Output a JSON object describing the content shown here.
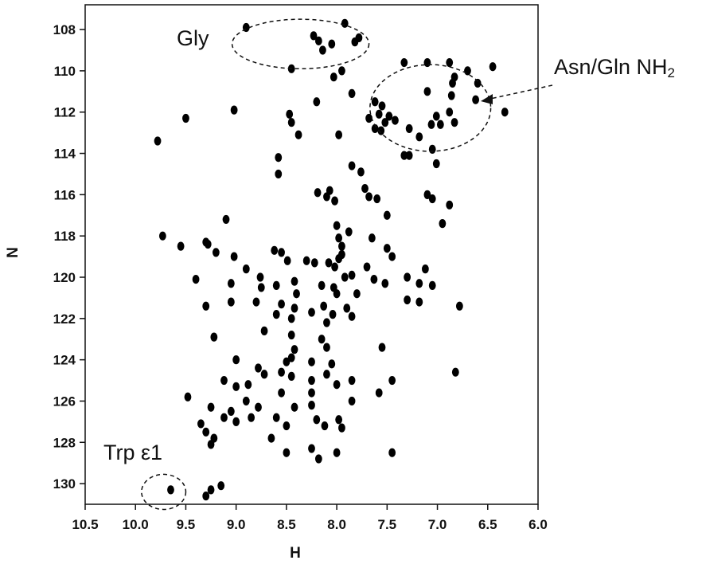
{
  "chart_data": {
    "type": "scatter",
    "title": "",
    "xlabel": "H",
    "ylabel": "N",
    "xlim": [
      10.5,
      6.0
    ],
    "ylim": [
      131.0,
      106.8
    ],
    "x_reversed": true,
    "y_reversed": true,
    "grid": false,
    "x_ticks": [
      "10.5",
      "10.0",
      "9.5",
      "9.0",
      "8.5",
      "8.0",
      "7.5",
      "7.0",
      "6.5",
      "6.0"
    ],
    "y_ticks": [
      "108",
      "110",
      "112",
      "114",
      "116",
      "118",
      "120",
      "122",
      "124",
      "126",
      "128",
      "130"
    ],
    "peak_color": "#000000",
    "annotations": [
      {
        "label": "Gly",
        "sub": "",
        "region_center": [
          8.36,
          108.7
        ],
        "region_radius": [
          0.68,
          1.2
        ]
      },
      {
        "label": "Asn/Gln NH",
        "sub": "2",
        "region_center": [
          7.07,
          111.8
        ],
        "region_radius": [
          0.6,
          2.1
        ]
      },
      {
        "label": "Trp ε1",
        "sub": "",
        "region_center": [
          9.72,
          130.4
        ],
        "region_radius": [
          0.22,
          0.85
        ]
      }
    ],
    "peaks": [
      [
        8.9,
        107.9
      ],
      [
        8.23,
        108.3
      ],
      [
        8.18,
        108.55
      ],
      [
        8.05,
        108.7
      ],
      [
        7.82,
        108.6
      ],
      [
        7.78,
        108.4
      ],
      [
        7.92,
        107.7
      ],
      [
        8.45,
        109.9
      ],
      [
        8.14,
        109.0
      ],
      [
        8.03,
        110.3
      ],
      [
        7.95,
        110.0
      ],
      [
        7.85,
        111.1
      ],
      [
        7.58,
        112.1
      ],
      [
        7.52,
        112.5
      ],
      [
        7.48,
        112.2
      ],
      [
        7.55,
        111.7
      ],
      [
        7.62,
        111.5
      ],
      [
        7.42,
        112.4
      ],
      [
        7.62,
        112.8
      ],
      [
        7.56,
        112.9
      ],
      [
        7.68,
        112.3
      ],
      [
        7.28,
        112.8
      ],
      [
        7.33,
        109.6
      ],
      [
        7.1,
        109.6
      ],
      [
        7.06,
        112.6
      ],
      [
        7.01,
        112.2
      ],
      [
        6.97,
        112.6
      ],
      [
        6.88,
        112.0
      ],
      [
        6.86,
        111.2
      ],
      [
        6.85,
        110.6
      ],
      [
        6.83,
        110.3
      ],
      [
        6.88,
        109.6
      ],
      [
        6.83,
        112.5
      ],
      [
        7.18,
        113.2
      ],
      [
        7.05,
        113.8
      ],
      [
        7.01,
        114.5
      ],
      [
        7.28,
        114.1
      ],
      [
        7.1,
        111.0
      ],
      [
        6.62,
        111.4
      ],
      [
        6.6,
        110.6
      ],
      [
        6.7,
        110.0
      ],
      [
        6.45,
        109.8
      ],
      [
        6.33,
        112.0
      ],
      [
        9.5,
        112.3
      ],
      [
        9.02,
        111.9
      ],
      [
        8.47,
        112.1
      ],
      [
        8.45,
        112.5
      ],
      [
        8.38,
        113.1
      ],
      [
        8.2,
        111.5
      ],
      [
        7.98,
        113.1
      ],
      [
        7.85,
        114.6
      ],
      [
        9.78,
        113.4
      ],
      [
        8.58,
        114.2
      ],
      [
        8.58,
        115.0
      ],
      [
        8.19,
        115.9
      ],
      [
        8.1,
        116.1
      ],
      [
        8.07,
        115.8
      ],
      [
        8.02,
        116.3
      ],
      [
        7.76,
        114.9
      ],
      [
        7.72,
        115.7
      ],
      [
        7.68,
        116.1
      ],
      [
        7.6,
        116.2
      ],
      [
        7.33,
        114.1
      ],
      [
        7.1,
        116.0
      ],
      [
        7.05,
        116.2
      ],
      [
        9.73,
        118.0
      ],
      [
        9.1,
        117.2
      ],
      [
        8.0,
        117.5
      ],
      [
        7.98,
        118.1
      ],
      [
        7.95,
        118.5
      ],
      [
        7.88,
        117.8
      ],
      [
        7.65,
        118.1
      ],
      [
        7.5,
        117.0
      ],
      [
        6.88,
        116.5
      ],
      [
        6.95,
        117.4
      ],
      [
        9.55,
        118.5
      ],
      [
        9.3,
        118.3
      ],
      [
        9.28,
        118.4
      ],
      [
        9.2,
        118.8
      ],
      [
        9.02,
        119.0
      ],
      [
        8.9,
        119.6
      ],
      [
        8.62,
        118.7
      ],
      [
        8.55,
        118.8
      ],
      [
        8.49,
        119.2
      ],
      [
        8.3,
        119.2
      ],
      [
        8.22,
        119.3
      ],
      [
        8.08,
        119.3
      ],
      [
        8.02,
        119.5
      ],
      [
        7.98,
        119.1
      ],
      [
        7.95,
        118.9
      ],
      [
        7.92,
        120.0
      ],
      [
        7.85,
        119.9
      ],
      [
        7.7,
        119.5
      ],
      [
        7.63,
        120.1
      ],
      [
        7.52,
        120.3
      ],
      [
        7.5,
        118.6
      ],
      [
        7.45,
        119.0
      ],
      [
        7.3,
        120.0
      ],
      [
        7.18,
        120.3
      ],
      [
        7.12,
        119.6
      ],
      [
        7.05,
        120.4
      ],
      [
        9.4,
        120.1
      ],
      [
        9.05,
        120.3
      ],
      [
        8.76,
        120.0
      ],
      [
        8.75,
        120.5
      ],
      [
        8.6,
        120.4
      ],
      [
        8.42,
        120.2
      ],
      [
        8.4,
        120.8
      ],
      [
        8.15,
        120.4
      ],
      [
        8.03,
        120.5
      ],
      [
        8.0,
        120.8
      ],
      [
        7.8,
        120.8
      ],
      [
        7.3,
        121.1
      ],
      [
        7.18,
        121.2
      ],
      [
        9.3,
        121.4
      ],
      [
        9.05,
        121.2
      ],
      [
        8.8,
        121.2
      ],
      [
        8.55,
        121.3
      ],
      [
        8.42,
        121.5
      ],
      [
        8.25,
        121.7
      ],
      [
        8.13,
        121.4
      ],
      [
        8.04,
        121.8
      ],
      [
        7.9,
        121.5
      ],
      [
        7.85,
        121.9
      ],
      [
        8.1,
        122.2
      ],
      [
        9.22,
        122.9
      ],
      [
        8.72,
        122.6
      ],
      [
        8.6,
        121.8
      ],
      [
        8.45,
        122.0
      ],
      [
        8.45,
        122.8
      ],
      [
        8.42,
        123.5
      ],
      [
        8.15,
        123.0
      ],
      [
        8.1,
        123.4
      ],
      [
        9.0,
        124.0
      ],
      [
        8.78,
        124.4
      ],
      [
        8.5,
        124.1
      ],
      [
        8.45,
        123.9
      ],
      [
        8.25,
        124.1
      ],
      [
        8.1,
        124.7
      ],
      [
        8.05,
        124.2
      ],
      [
        7.55,
        123.4
      ],
      [
        9.12,
        125.0
      ],
      [
        9.0,
        125.3
      ],
      [
        8.88,
        125.2
      ],
      [
        8.72,
        124.7
      ],
      [
        8.55,
        124.6
      ],
      [
        8.45,
        124.8
      ],
      [
        8.25,
        125.0
      ],
      [
        8.25,
        125.6
      ],
      [
        8.0,
        125.2
      ],
      [
        7.85,
        125.0
      ],
      [
        9.48,
        125.8
      ],
      [
        9.25,
        126.3
      ],
      [
        9.05,
        126.5
      ],
      [
        8.9,
        126.0
      ],
      [
        8.78,
        126.3
      ],
      [
        8.55,
        125.6
      ],
      [
        8.42,
        126.3
      ],
      [
        8.25,
        126.2
      ],
      [
        7.85,
        126.0
      ],
      [
        7.58,
        125.6
      ],
      [
        7.45,
        125.0
      ],
      [
        9.35,
        127.1
      ],
      [
        9.3,
        127.5
      ],
      [
        9.22,
        127.8
      ],
      [
        9.12,
        126.8
      ],
      [
        9.0,
        127.0
      ],
      [
        8.85,
        126.8
      ],
      [
        8.6,
        126.8
      ],
      [
        8.5,
        127.2
      ],
      [
        8.2,
        126.9
      ],
      [
        8.12,
        127.2
      ],
      [
        7.98,
        126.9
      ],
      [
        7.95,
        127.3
      ],
      [
        9.25,
        128.1
      ],
      [
        8.65,
        127.8
      ],
      [
        8.5,
        128.5
      ],
      [
        8.25,
        128.3
      ],
      [
        8.18,
        128.8
      ],
      [
        8.0,
        128.5
      ],
      [
        7.45,
        128.5
      ],
      [
        9.3,
        130.6
      ],
      [
        9.25,
        130.3
      ],
      [
        9.15,
        130.1
      ],
      [
        9.65,
        130.3
      ],
      [
        6.82,
        124.6
      ],
      [
        6.78,
        121.4
      ]
    ]
  }
}
